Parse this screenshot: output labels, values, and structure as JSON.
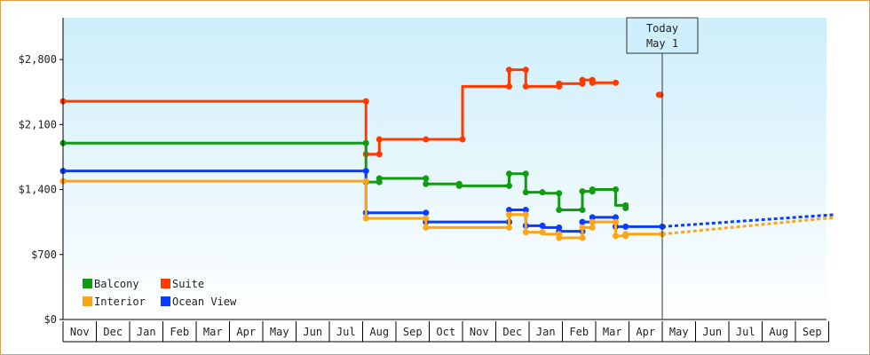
{
  "chart_data": {
    "type": "line",
    "title": "",
    "xlabel": "",
    "ylabel": "",
    "months": [
      "Nov",
      "Dec",
      "Jan",
      "Feb",
      "Mar",
      "Apr",
      "May",
      "Jun",
      "Jul",
      "Aug",
      "Sep",
      "Oct",
      "Nov",
      "Dec",
      "Jan",
      "Feb",
      "Mar",
      "Apr",
      "May",
      "Jun",
      "Jul",
      "Aug",
      "Sep"
    ],
    "y_ticks": [
      {
        "value": 0,
        "label": "$0"
      },
      {
        "value": 700,
        "label": "$700"
      },
      {
        "value": 1400,
        "label": "$1,400"
      },
      {
        "value": 2100,
        "label": "$2,100"
      },
      {
        "value": 2800,
        "label": "$2,800"
      }
    ],
    "ylim": [
      0,
      3250
    ],
    "xlim": [
      0,
      23.2
    ],
    "grid": false,
    "today_marker": {
      "x": 18.0,
      "line1": "Today",
      "line2": "May 1"
    },
    "legend": {
      "placement": "bottom-left"
    },
    "colors": {
      "Balcony": "#129a12",
      "Suite": "#ff3a00",
      "Interior": "#ffa416",
      "Ocean View": "#0a3cff",
      "background_top": "#cdeefa",
      "background_bottom": "#ffffff"
    },
    "series": [
      {
        "name": "Suite",
        "step_points": [
          [
            0,
            2350
          ],
          [
            9.1,
            2350
          ],
          [
            9.1,
            1780
          ],
          [
            9.5,
            1780
          ],
          [
            9.5,
            1940
          ],
          [
            10.9,
            1940
          ],
          [
            12.0,
            1940
          ],
          [
            12.0,
            2510
          ],
          [
            13.4,
            2510
          ],
          [
            13.4,
            2690
          ],
          [
            13.9,
            2690
          ],
          [
            13.9,
            2510
          ],
          [
            14.9,
            2510
          ],
          [
            14.9,
            2540
          ],
          [
            15.6,
            2540
          ],
          [
            15.6,
            2580
          ],
          [
            15.9,
            2580
          ],
          [
            15.9,
            2550
          ],
          [
            16.6,
            2550
          ]
        ],
        "markers": [
          [
            0,
            2350
          ],
          [
            9.1,
            2350
          ],
          [
            9.1,
            1780
          ],
          [
            9.5,
            1780
          ],
          [
            9.5,
            1940
          ],
          [
            10.9,
            1940
          ],
          [
            12.0,
            1940
          ],
          [
            13.4,
            2510
          ],
          [
            13.4,
            2690
          ],
          [
            13.9,
            2690
          ],
          [
            13.9,
            2510
          ],
          [
            14.9,
            2510
          ],
          [
            14.9,
            2540
          ],
          [
            15.6,
            2540
          ],
          [
            15.6,
            2580
          ],
          [
            15.9,
            2580
          ],
          [
            15.9,
            2550
          ],
          [
            16.6,
            2550
          ],
          [
            17.9,
            2420
          ],
          [
            17.95,
            2420
          ]
        ],
        "segments": [
          [
            [
              17.9,
              2420
            ],
            [
              17.95,
              2420
            ]
          ]
        ],
        "forecast": []
      },
      {
        "name": "Balcony",
        "step_points": [
          [
            0,
            1900
          ],
          [
            9.1,
            1900
          ],
          [
            9.1,
            1480
          ],
          [
            9.5,
            1480
          ],
          [
            9.5,
            1520
          ],
          [
            10.9,
            1520
          ],
          [
            10.9,
            1460
          ],
          [
            11.9,
            1460
          ],
          [
            11.9,
            1440
          ],
          [
            13.4,
            1440
          ],
          [
            13.4,
            1570
          ],
          [
            13.9,
            1570
          ],
          [
            13.9,
            1370
          ],
          [
            14.4,
            1370
          ],
          [
            14.4,
            1360
          ],
          [
            14.9,
            1360
          ],
          [
            14.9,
            1180
          ],
          [
            15.6,
            1180
          ],
          [
            15.6,
            1380
          ],
          [
            15.9,
            1380
          ],
          [
            15.9,
            1400
          ],
          [
            16.6,
            1400
          ],
          [
            16.6,
            1230
          ],
          [
            16.9,
            1230
          ],
          [
            16.9,
            1200
          ]
        ],
        "markers": [
          [
            0,
            1900
          ],
          [
            9.1,
            1900
          ],
          [
            9.1,
            1480
          ],
          [
            9.5,
            1480
          ],
          [
            9.5,
            1520
          ],
          [
            10.9,
            1520
          ],
          [
            10.9,
            1460
          ],
          [
            11.9,
            1460
          ],
          [
            11.9,
            1440
          ],
          [
            13.4,
            1440
          ],
          [
            13.4,
            1570
          ],
          [
            13.9,
            1570
          ],
          [
            13.9,
            1370
          ],
          [
            14.4,
            1370
          ],
          [
            14.9,
            1360
          ],
          [
            14.9,
            1180
          ],
          [
            15.6,
            1180
          ],
          [
            15.6,
            1380
          ],
          [
            15.9,
            1380
          ],
          [
            15.9,
            1400
          ],
          [
            16.6,
            1400
          ],
          [
            16.9,
            1230
          ],
          [
            16.9,
            1200
          ]
        ],
        "segments": [],
        "forecast": []
      },
      {
        "name": "Ocean View",
        "step_points": [
          [
            0,
            1600
          ],
          [
            9.1,
            1600
          ],
          [
            9.1,
            1150
          ],
          [
            10.9,
            1150
          ],
          [
            10.9,
            1050
          ],
          [
            13.4,
            1050
          ],
          [
            13.4,
            1180
          ],
          [
            13.9,
            1180
          ],
          [
            13.9,
            1010
          ],
          [
            14.4,
            1010
          ],
          [
            14.4,
            990
          ],
          [
            14.9,
            990
          ],
          [
            14.9,
            950
          ],
          [
            15.6,
            950
          ],
          [
            15.6,
            1050
          ],
          [
            15.9,
            1050
          ],
          [
            15.9,
            1100
          ],
          [
            16.6,
            1100
          ],
          [
            16.6,
            1000
          ],
          [
            16.9,
            1000
          ],
          [
            16.9,
            1000
          ],
          [
            18.0,
            1000
          ]
        ],
        "markers": [
          [
            0,
            1600
          ],
          [
            9.1,
            1600
          ],
          [
            9.1,
            1150
          ],
          [
            10.9,
            1150
          ],
          [
            10.9,
            1050
          ],
          [
            13.4,
            1050
          ],
          [
            13.4,
            1180
          ],
          [
            13.9,
            1180
          ],
          [
            13.9,
            1010
          ],
          [
            14.4,
            1010
          ],
          [
            14.9,
            990
          ],
          [
            14.9,
            950
          ],
          [
            15.6,
            950
          ],
          [
            15.6,
            1050
          ],
          [
            15.9,
            1050
          ],
          [
            15.9,
            1100
          ],
          [
            16.6,
            1100
          ],
          [
            16.6,
            1000
          ],
          [
            16.9,
            1000
          ],
          [
            18.0,
            1000
          ]
        ],
        "segments": [],
        "forecast": [
          [
            18.0,
            1000
          ],
          [
            23.2,
            1130
          ]
        ]
      },
      {
        "name": "Interior",
        "step_points": [
          [
            0,
            1490
          ],
          [
            9.1,
            1490
          ],
          [
            9.1,
            1090
          ],
          [
            10.9,
            1090
          ],
          [
            10.9,
            990
          ],
          [
            13.4,
            990
          ],
          [
            13.4,
            1130
          ],
          [
            13.9,
            1130
          ],
          [
            13.9,
            940
          ],
          [
            14.4,
            940
          ],
          [
            14.4,
            920
          ],
          [
            14.9,
            920
          ],
          [
            14.9,
            880
          ],
          [
            15.6,
            880
          ],
          [
            15.6,
            990
          ],
          [
            15.9,
            990
          ],
          [
            15.9,
            1050
          ],
          [
            16.6,
            1050
          ],
          [
            16.6,
            900
          ],
          [
            16.9,
            900
          ],
          [
            16.9,
            920
          ],
          [
            18.0,
            920
          ]
        ],
        "markers": [
          [
            0,
            1490
          ],
          [
            9.1,
            1490
          ],
          [
            9.1,
            1090
          ],
          [
            10.9,
            1090
          ],
          [
            10.9,
            990
          ],
          [
            13.4,
            990
          ],
          [
            13.4,
            1130
          ],
          [
            13.9,
            1130
          ],
          [
            13.9,
            940
          ],
          [
            14.4,
            940
          ],
          [
            14.9,
            920
          ],
          [
            14.9,
            880
          ],
          [
            15.6,
            880
          ],
          [
            15.6,
            990
          ],
          [
            15.9,
            990
          ],
          [
            15.9,
            1050
          ],
          [
            16.6,
            1050
          ],
          [
            16.6,
            900
          ],
          [
            16.9,
            900
          ],
          [
            16.9,
            920
          ],
          [
            18.0,
            920
          ]
        ],
        "segments": [],
        "forecast": [
          [
            18.0,
            920
          ],
          [
            23.2,
            1100
          ]
        ]
      }
    ],
    "legend_entries": [
      {
        "name": "Balcony"
      },
      {
        "name": "Suite"
      },
      {
        "name": "Interior"
      },
      {
        "name": "Ocean View"
      }
    ]
  }
}
